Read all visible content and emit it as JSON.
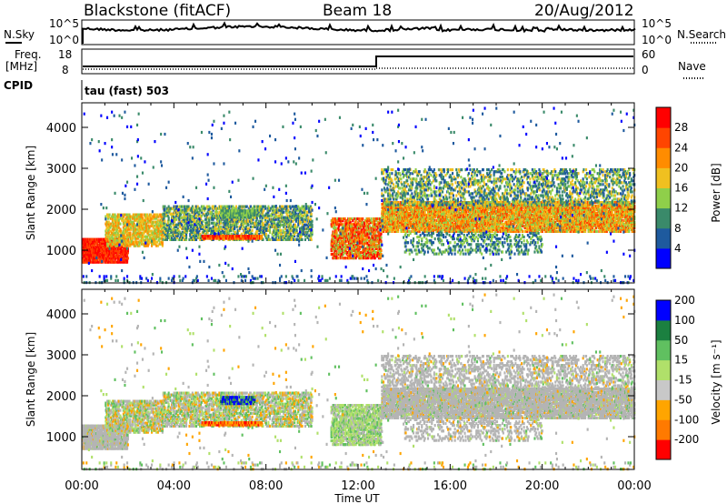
{
  "header": {
    "station": "Blackstone (fitACF)",
    "beam": "Beam 18",
    "date": "20/Aug/2012"
  },
  "top_panels": {
    "nsky_label": "N.Sky",
    "nsky_hi": "10^5",
    "nsky_lo": "10^0",
    "nsearch_label": "N.Search",
    "freq_label": "Freq.",
    "freq_unit": "[MHz]",
    "freq_hi": "18",
    "freq_lo": "8",
    "nave_hi": "60",
    "nave_lo": "0",
    "nave_label": "Nave",
    "cpid_label": "CPID",
    "cpid_text": "tau (fast) 503"
  },
  "colors": {
    "power": [
      "#0000ff",
      "#1e5a9e",
      "#3a8a6a",
      "#8fcf4a",
      "#f0c020",
      "#ff8c00",
      "#ff4500",
      "#ff0000"
    ],
    "velocity": [
      "#ff0000",
      "#ff7a00",
      "#ffa500",
      "#c8c8c8",
      "#b0e06a",
      "#60c060",
      "#1b8040",
      "#0000ff"
    ],
    "ground_scatter": "#b4b4b4"
  },
  "chart_data": [
    {
      "type": "heatmap",
      "name": "power",
      "ylabel": "Slant Range [km]",
      "xlabel": "Time UT",
      "x_ticks": [
        "00:00",
        "04:00",
        "08:00",
        "12:00",
        "16:00",
        "20:00",
        "00:00"
      ],
      "y_ticks": [
        1000,
        2000,
        3000,
        4000
      ],
      "ylim": [
        200,
        4600
      ],
      "colorbar_label": "Power [dB]",
      "colorbar_ticks": [
        4,
        8,
        12,
        16,
        20,
        24,
        28
      ]
    },
    {
      "type": "heatmap",
      "name": "velocity",
      "ylabel": "Slant Range [km]",
      "xlabel": "Time UT",
      "x_ticks": [
        "00:00",
        "04:00",
        "08:00",
        "12:00",
        "16:00",
        "20:00",
        "00:00"
      ],
      "y_ticks": [
        1000,
        2000,
        3000,
        4000
      ],
      "ylim": [
        200,
        4600
      ],
      "colorbar_label": "Velocity [m s⁻¹]",
      "colorbar_ticks": [
        "-200",
        "-100",
        "-50",
        "-15",
        "15",
        "50",
        "100",
        "200"
      ]
    }
  ]
}
